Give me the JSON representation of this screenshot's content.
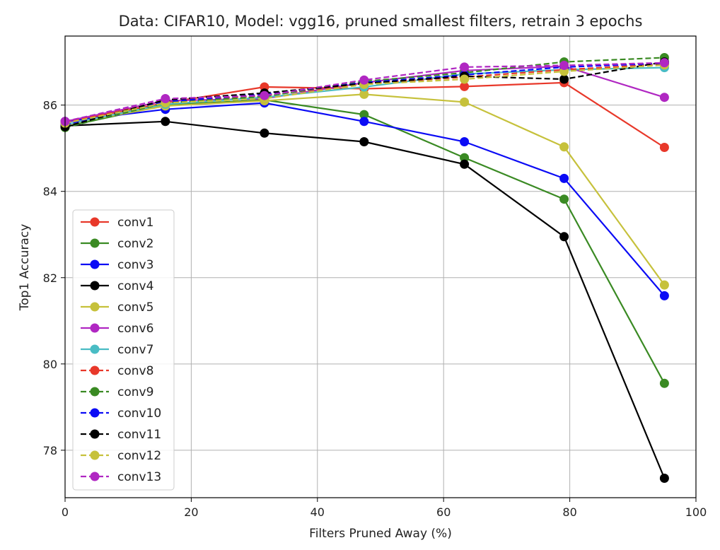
{
  "chart_data": {
    "type": "line",
    "title": "Data: CIFAR10, Model: vgg16, pruned smallest filters, retrain 3 epochs",
    "xlabel": "Filters Pruned Away (%)",
    "ylabel": "Top1 Accuracy",
    "xlim": [
      0,
      100
    ],
    "ylim": [
      76.9,
      87.6
    ],
    "xticks": [
      0,
      20,
      40,
      60,
      80,
      100
    ],
    "yticks": [
      78,
      80,
      82,
      84,
      86
    ],
    "grid": true,
    "legend_position": "lower-left",
    "x": [
      0,
      15.9,
      31.6,
      47.4,
      63.3,
      79.1,
      95
    ],
    "series": [
      {
        "name": "conv1",
        "color": "#e8382a",
        "dash": "solid",
        "values": [
          85.6,
          86.05,
          86.42,
          86.38,
          86.43,
          86.52,
          85.02
        ]
      },
      {
        "name": "conv2",
        "color": "#3a8a23",
        "dash": "solid",
        "values": [
          85.5,
          86.0,
          86.12,
          85.78,
          84.78,
          83.82,
          79.55
        ]
      },
      {
        "name": "conv3",
        "color": "#0b0bf5",
        "dash": "solid",
        "values": [
          85.62,
          85.9,
          86.05,
          85.62,
          85.15,
          84.3,
          81.58
        ]
      },
      {
        "name": "conv4",
        "color": "#000000",
        "dash": "solid",
        "values": [
          85.52,
          85.62,
          85.35,
          85.15,
          84.63,
          82.95,
          77.35
        ]
      },
      {
        "name": "conv5",
        "color": "#c6c13b",
        "dash": "solid",
        "values": [
          85.55,
          85.98,
          86.1,
          86.25,
          86.07,
          85.03,
          81.83
        ]
      },
      {
        "name": "conv6",
        "color": "#b027c2",
        "dash": "solid",
        "values": [
          85.62,
          86.1,
          86.15,
          86.52,
          86.8,
          86.9,
          86.18
        ]
      },
      {
        "name": "conv7",
        "color": "#49bcc4",
        "dash": "solid",
        "values": [
          85.55,
          86.02,
          86.18,
          86.42,
          86.72,
          86.82,
          86.87
        ]
      },
      {
        "name": "conv8",
        "color": "#e8382a",
        "dash": "dashed",
        "values": [
          85.6,
          86.08,
          86.22,
          86.5,
          86.65,
          86.82,
          86.95
        ]
      },
      {
        "name": "conv9",
        "color": "#3a8a23",
        "dash": "dashed",
        "values": [
          85.48,
          86.05,
          86.2,
          86.55,
          86.75,
          87.0,
          87.1
        ]
      },
      {
        "name": "conv10",
        "color": "#0b0bf5",
        "dash": "dashed",
        "values": [
          85.55,
          86.08,
          86.25,
          86.52,
          86.7,
          86.88,
          86.97
        ]
      },
      {
        "name": "conv11",
        "color": "#000000",
        "dash": "dashed",
        "values": [
          85.5,
          86.12,
          86.28,
          86.5,
          86.67,
          86.6,
          87.0
        ]
      },
      {
        "name": "conv12",
        "color": "#c6c13b",
        "dash": "dashed",
        "values": [
          85.58,
          86.05,
          86.15,
          86.48,
          86.6,
          86.78,
          86.93
        ]
      },
      {
        "name": "conv13",
        "color": "#b027c2",
        "dash": "dashed",
        "values": [
          85.62,
          86.15,
          86.22,
          86.58,
          86.88,
          86.92,
          86.98
        ]
      }
    ]
  }
}
